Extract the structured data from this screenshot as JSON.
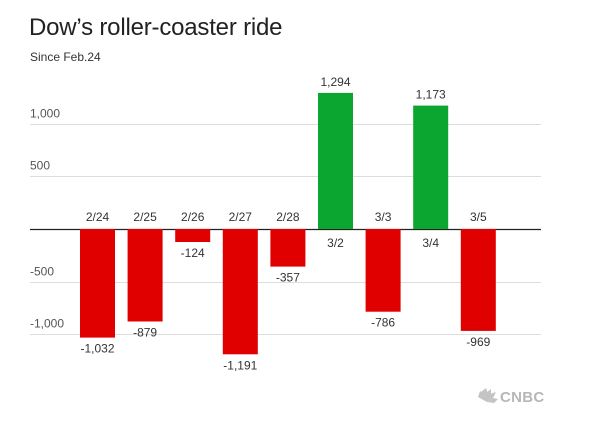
{
  "chart_data": {
    "type": "bar",
    "title": "Dow’s roller-coaster ride",
    "subtitle": "Since Feb.24",
    "categories": [
      "2/24",
      "2/25",
      "2/26",
      "2/27",
      "2/28",
      "3/2",
      "3/3",
      "3/4",
      "3/5"
    ],
    "values": [
      -1032,
      -879,
      -124,
      -1191,
      -357,
      1294,
      -786,
      1173,
      -969
    ],
    "value_labels": [
      "-1,032",
      "-879",
      "-124",
      "-1,191",
      "-357",
      "1,294",
      "-786",
      "1,173",
      "-969"
    ],
    "yticks": [
      1000,
      500,
      -500,
      -1000
    ],
    "ytick_labels": [
      "1,000",
      "500",
      "-500",
      "-1,000"
    ],
    "ylim": [
      -1300,
      1420
    ],
    "xlabel": "",
    "ylabel": "",
    "grid": true,
    "colors": {
      "positive": "#0aa630",
      "negative": "#e00000"
    }
  },
  "branding": {
    "logo_text": "CNBC",
    "logo_icon": "peacock-icon"
  }
}
